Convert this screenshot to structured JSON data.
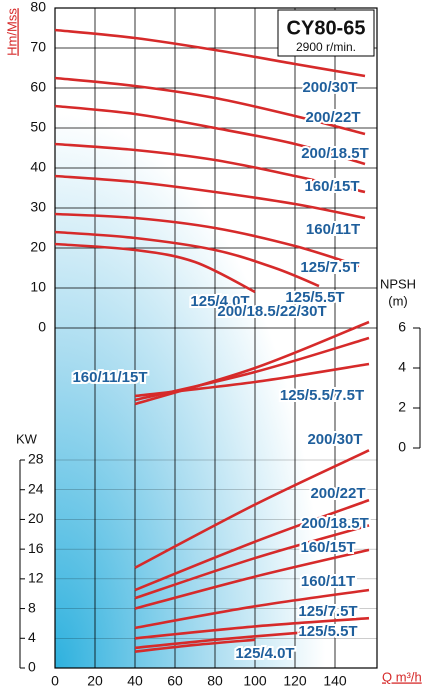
{
  "chart_data": [
    {
      "type": "line",
      "title": "CY80-65",
      "subtitle": "2900 r/min.",
      "ylabel": "Hm/Mss",
      "xlim": [
        0,
        160
      ],
      "ylim": [
        0,
        80
      ],
      "yticks": [
        0,
        10,
        20,
        30,
        40,
        50,
        60,
        70,
        80
      ],
      "grid": true,
      "color": "#d62a2a",
      "series": [
        {
          "name": "200/30T",
          "x": [
            0,
            40,
            80,
            120,
            155
          ],
          "values": [
            74.5,
            72.5,
            69.5,
            66,
            63
          ]
        },
        {
          "name": "200/22T",
          "x": [
            0,
            40,
            80,
            120,
            155
          ],
          "values": [
            62.5,
            60.5,
            57.5,
            53,
            48.5
          ]
        },
        {
          "name": "200/18.5T",
          "x": [
            0,
            40,
            80,
            120,
            155
          ],
          "values": [
            55.5,
            53.5,
            50,
            46,
            41
          ]
        },
        {
          "name": "160/15T",
          "x": [
            0,
            40,
            80,
            120,
            155
          ],
          "values": [
            46,
            44.5,
            42,
            38,
            34
          ]
        },
        {
          "name": "160/11T",
          "x": [
            0,
            40,
            80,
            120,
            155
          ],
          "values": [
            38,
            36.5,
            34,
            31,
            27.5
          ]
        },
        {
          "name": "125/7.5T",
          "x": [
            0,
            40,
            80,
            120,
            152
          ],
          "values": [
            28.5,
            27.5,
            25,
            20.5,
            15.5
          ]
        },
        {
          "name": "125/5.5T",
          "x": [
            0,
            40,
            80,
            110,
            132
          ],
          "values": [
            24,
            22.5,
            19.5,
            15,
            10.5
          ]
        },
        {
          "name": "125/4.0T",
          "x": [
            0,
            40,
            70,
            100
          ],
          "values": [
            21,
            19.5,
            16.5,
            9
          ]
        }
      ]
    },
    {
      "type": "line",
      "ylabel": "NPSH",
      "ylabel_unit": "(m)",
      "xlim": [
        0,
        160
      ],
      "ylim": [
        0,
        6
      ],
      "yticks": [
        0,
        2,
        4,
        6
      ],
      "color": "#d62a2a",
      "series": [
        {
          "name": "200/18.5/22/30T",
          "x": [
            40,
            100,
            157
          ],
          "values": [
            2.2,
            4,
            6.3
          ]
        },
        {
          "name": "160/11/15T",
          "x": [
            40,
            100,
            157
          ],
          "values": [
            2.4,
            3.8,
            5.5
          ]
        },
        {
          "name": "125/5.5/7.5T",
          "x": [
            40,
            100,
            157
          ],
          "values": [
            2.6,
            3.3,
            4.2
          ]
        }
      ]
    },
    {
      "type": "line",
      "ylabel": "KW",
      "xlabel": "Q m³/h",
      "xlim": [
        0,
        160
      ],
      "xticks": [
        0,
        20,
        40,
        60,
        80,
        100,
        120,
        140
      ],
      "ylim": [
        0,
        28
      ],
      "yticks": [
        0,
        4,
        8,
        12,
        16,
        20,
        24,
        28
      ],
      "grid": true,
      "color": "#d62a2a",
      "series": [
        {
          "name": "200/30T",
          "x": [
            40,
            100,
            157
          ],
          "values": [
            13.5,
            22,
            29.3
          ]
        },
        {
          "name": "200/22T",
          "x": [
            40,
            100,
            157
          ],
          "values": [
            10.5,
            17,
            22.6
          ]
        },
        {
          "name": "200/18.5T",
          "x": [
            40,
            100,
            157
          ],
          "values": [
            9.4,
            14.8,
            19.2
          ]
        },
        {
          "name": "160/15T",
          "x": [
            40,
            100,
            157
          ],
          "values": [
            8,
            12.3,
            15.9
          ]
        },
        {
          "name": "160/11T",
          "x": [
            40,
            100,
            157
          ],
          "values": [
            5.4,
            8.3,
            10.5
          ]
        },
        {
          "name": "125/7.5T",
          "x": [
            40,
            100,
            157
          ],
          "values": [
            4,
            5.6,
            6.7
          ]
        },
        {
          "name": "125/5.5T",
          "x": [
            40,
            80,
            125
          ],
          "values": [
            2.7,
            3.8,
            4.8
          ]
        },
        {
          "name": "125/4.0T",
          "x": [
            40,
            70,
            100
          ],
          "values": [
            2.2,
            3.1,
            3.8
          ]
        }
      ]
    }
  ]
}
